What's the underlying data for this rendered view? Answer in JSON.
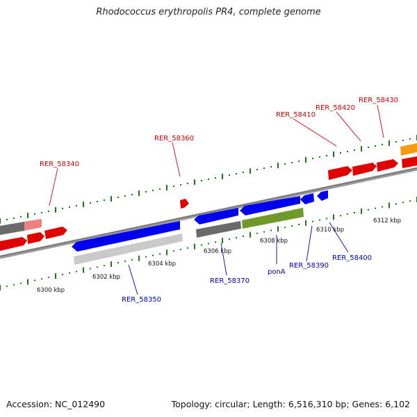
{
  "title": "Rhodococcus erythropolis PR4, complete genome",
  "footer": {
    "accession": "Accession: NC_012490",
    "summary": "Topology: circular; Length: 6,516,310 bp; Genes: 6,102"
  },
  "colors": {
    "forward_label": "#cc0000",
    "reverse_label": "#0000aa",
    "backbone": "#8a8a8a",
    "tick_dot": "#1a7a1a"
  },
  "scale_labels": [
    "6300 kbp",
    "6302 kbp",
    "6304 kbp",
    "6306 kbp",
    "6308 kbp",
    "6310 kbp",
    "6312 kbp"
  ],
  "forward_genes": [
    "RER_58340",
    "RER_58360",
    "RER_58410",
    "RER_58420",
    "RER_58430"
  ],
  "reverse_genes": [
    "RER_58350",
    "RER_58370",
    "ponA",
    "RER_58390",
    "RER_58400"
  ]
}
